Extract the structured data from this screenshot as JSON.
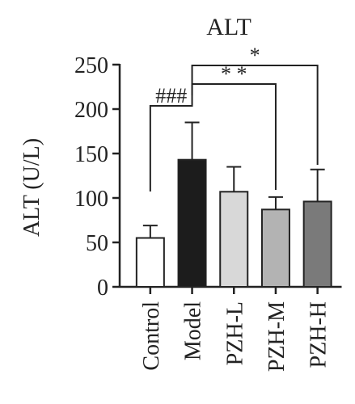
{
  "chart_data": {
    "type": "bar",
    "title": "ALT",
    "ylabel": "ALT (U/L)",
    "xlabel": "",
    "ylim": [
      0,
      250
    ],
    "yticks": [
      0,
      50,
      100,
      150,
      200,
      250
    ],
    "categories": [
      "Control",
      "Model",
      "PZH-L",
      "PZH-M",
      "PZH-H"
    ],
    "values": [
      55,
      143,
      107,
      87,
      96
    ],
    "errors": [
      14,
      42,
      28,
      14,
      36
    ],
    "colors": [
      "#ffffff",
      "#1c1c1c",
      "#d8d8d8",
      "#b3b3b3",
      "#7a7a7a"
    ],
    "significance": [
      {
        "from": "Control",
        "to": "Model",
        "label": "###"
      },
      {
        "from": "Model",
        "to": "PZH-M",
        "label": "* *"
      },
      {
        "from": "Model",
        "to": "PZH-H",
        "label": "*"
      }
    ]
  }
}
